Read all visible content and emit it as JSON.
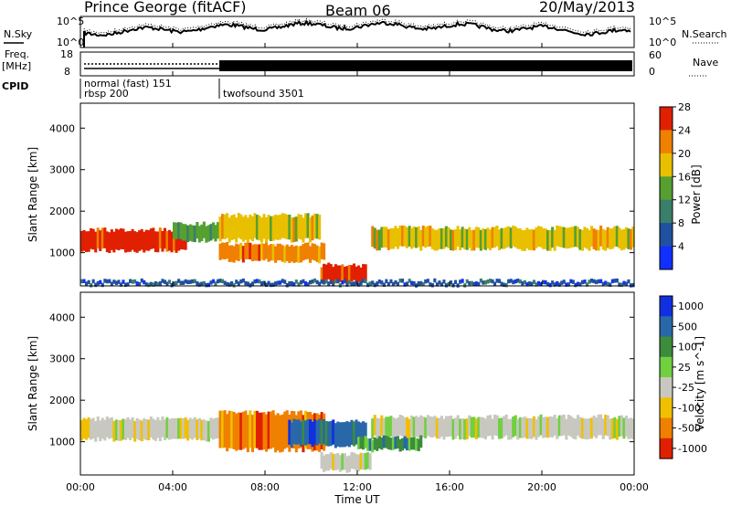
{
  "header": {
    "station": "Prince George (fitACF)",
    "beam": "Beam 06",
    "date": "20/May/2013"
  },
  "noise_panel": {
    "left_label": "N.Sky",
    "right_label": "N.Search",
    "left_ticks": [
      "10^5",
      "10^0"
    ],
    "right_ticks": [
      "10^5",
      "10^0"
    ]
  },
  "freq_panel": {
    "left_label_1": "Freq.",
    "left_label_2": "[MHz]",
    "right_label": "Nave",
    "left_ticks": [
      "18",
      "8"
    ],
    "right_ticks": [
      "60",
      "0"
    ]
  },
  "cpid": {
    "label": "CPID",
    "mode1": "normal (fast) 151",
    "mode2": "rbsp 200",
    "mode3": "twofsound 3501"
  },
  "time_axis": {
    "label": "Time UT",
    "ticks": [
      "00:00",
      "04:00",
      "08:00",
      "12:00",
      "16:00",
      "20:00",
      "00:00"
    ]
  },
  "chart_data": [
    {
      "type": "heatmap",
      "quantity": "power",
      "ylabel": "Slant Range [km]",
      "yticks": [
        1000,
        2000,
        3000,
        4000
      ],
      "ylim": [
        200,
        4600
      ],
      "xlim_hours": [
        0,
        24
      ],
      "colorbar": {
        "label": "Power [dB]",
        "ticks": [
          "4",
          "8",
          "12",
          "16",
          "20",
          "24",
          "28"
        ],
        "colors": [
          "#1030ff",
          "#2050a0",
          "#3a7f6a",
          "#55a030",
          "#e8c000",
          "#f08000",
          "#e02000"
        ]
      },
      "bands": [
        {
          "t0": 0.0,
          "t1": 4.6,
          "r0": 1050,
          "r1": 1550,
          "level": 26
        },
        {
          "t0": 4.0,
          "t1": 6.2,
          "r0": 1300,
          "r1": 1700,
          "level": 14
        },
        {
          "t0": 6.0,
          "t1": 10.6,
          "r0": 800,
          "r1": 1200,
          "level": 24
        },
        {
          "t0": 6.0,
          "t1": 10.4,
          "r0": 1300,
          "r1": 1900,
          "level": 18
        },
        {
          "t0": 10.4,
          "t1": 12.4,
          "r0": 300,
          "r1": 700,
          "level": 28
        },
        {
          "t0": 12.6,
          "t1": 24.0,
          "r0": 1100,
          "r1": 1600,
          "level": 18
        },
        {
          "t0": 0.0,
          "t1": 24.0,
          "r0": 220,
          "r1": 320,
          "level": 8
        }
      ]
    },
    {
      "type": "heatmap",
      "quantity": "velocity",
      "ylabel": "Slant Range [km]",
      "yticks": [
        1000,
        2000,
        3000,
        4000
      ],
      "ylim": [
        200,
        4600
      ],
      "xlim_hours": [
        0,
        24
      ],
      "colorbar": {
        "label": "Velocity [m s^-1]",
        "ticks": [
          "1000",
          "500",
          "100",
          "25",
          "-25",
          "-100",
          "-500",
          "-1000"
        ],
        "colors": [
          "#1030e0",
          "#2868a8",
          "#3c8c3c",
          "#70d040",
          "#c8c8c0",
          "#f0c000",
          "#f08000",
          "#e02000"
        ]
      },
      "bands": [
        {
          "t0": 0.0,
          "t1": 6.0,
          "r0": 1050,
          "r1": 1550,
          "level": 0
        },
        {
          "t0": 6.0,
          "t1": 10.6,
          "r0": 800,
          "r1": 1700,
          "level": -300
        },
        {
          "t0": 9.0,
          "t1": 12.4,
          "r0": 900,
          "r1": 1500,
          "level": 400
        },
        {
          "t0": 10.4,
          "t1": 12.6,
          "r0": 300,
          "r1": 700,
          "level": 0
        },
        {
          "t0": 12.6,
          "t1": 24.0,
          "r0": 1100,
          "r1": 1600,
          "level": 0
        },
        {
          "t0": 12.0,
          "t1": 14.8,
          "r0": 800,
          "r1": 1100,
          "level": 80
        }
      ]
    }
  ]
}
